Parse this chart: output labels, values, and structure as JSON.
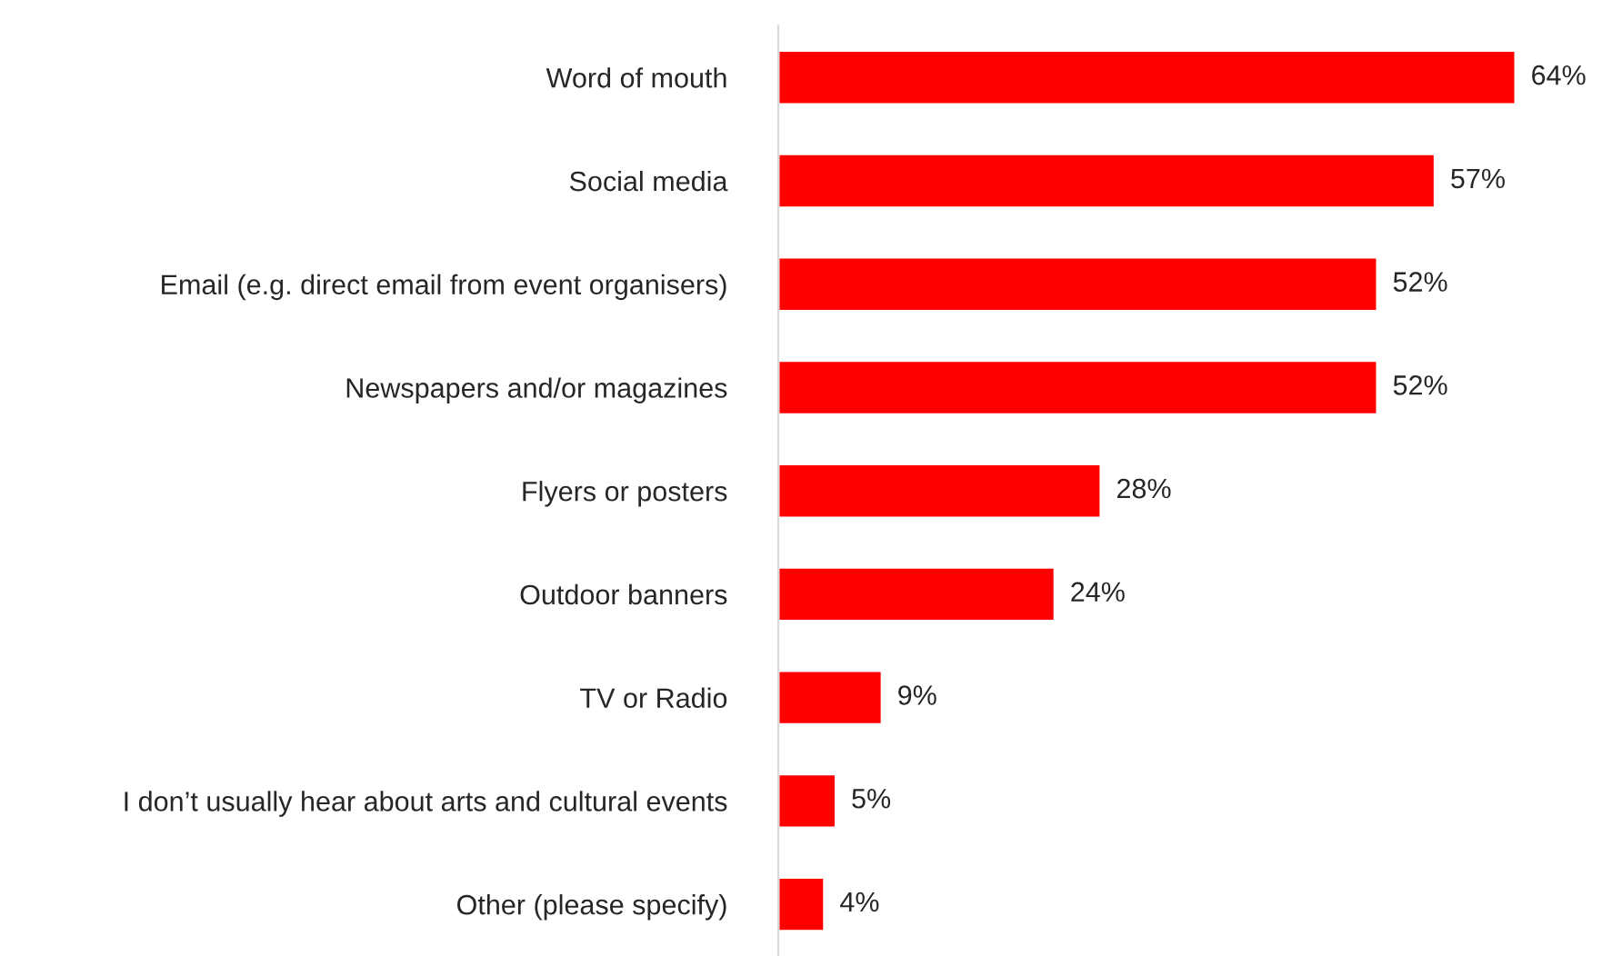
{
  "chart_data": {
    "type": "bar",
    "orientation": "horizontal",
    "categories": [
      "Word of mouth",
      "Social media",
      "Email (e.g. direct email from event organisers)",
      "Newspapers and/or magazines",
      "Flyers or posters",
      "Outdoor banners",
      "TV or Radio",
      "I don’t usually hear about arts and cultural events",
      "Other (please specify)"
    ],
    "values": [
      64,
      57,
      52,
      52,
      28,
      24,
      9,
      5,
      4
    ],
    "value_labels": [
      "64%",
      "57%",
      "52%",
      "52%",
      "28%",
      "24%",
      "9%",
      "5%",
      "4%"
    ],
    "color": "#ff0000",
    "grid": false,
    "legend": false,
    "tick_labels": "y"
  }
}
